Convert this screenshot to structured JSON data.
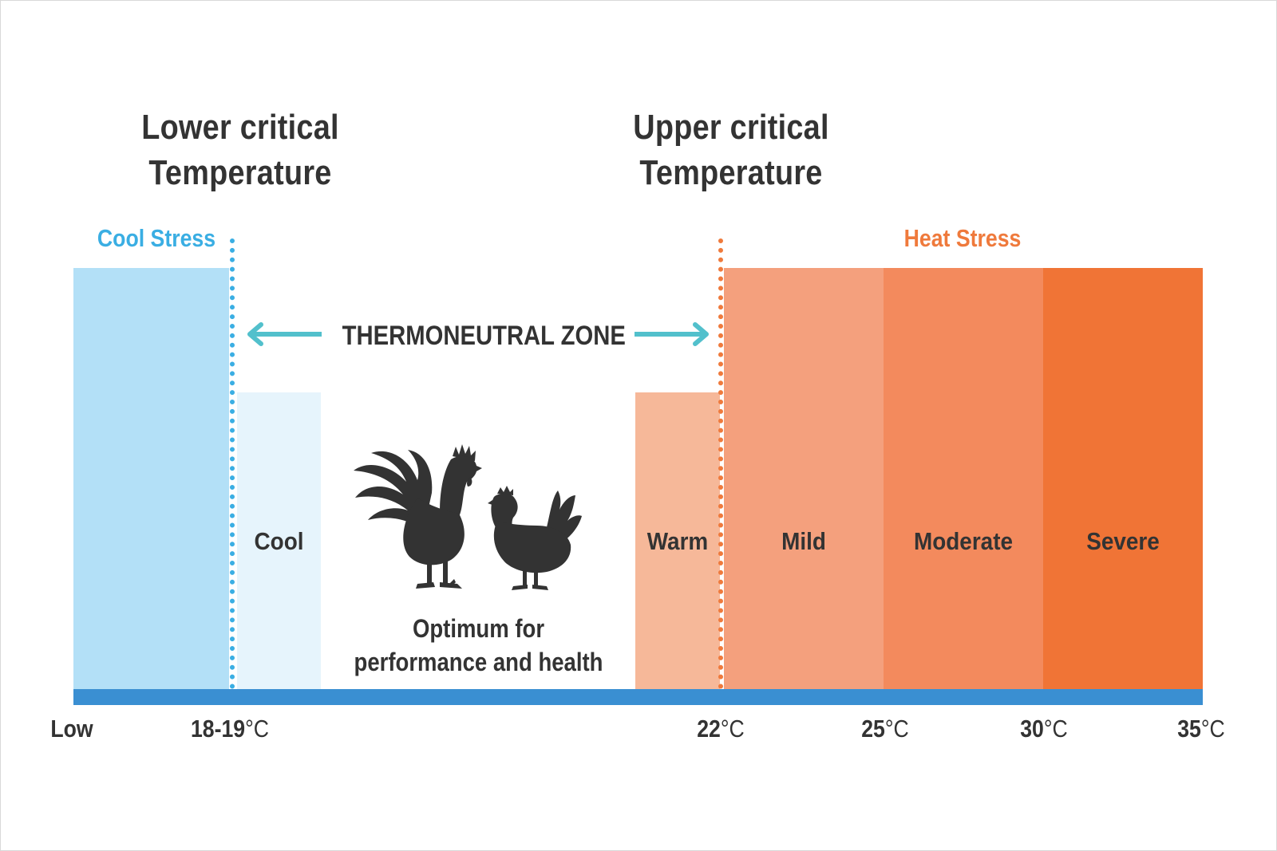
{
  "titles": {
    "lower_line1": "Lower critical",
    "lower_line2": "Temperature",
    "upper_line1": "Upper critical",
    "upper_line2": "Temperature"
  },
  "stress_labels": {
    "cool": "Cool Stress",
    "heat": "Heat Stress"
  },
  "zone_label": "THERMONEUTRAL ZONE",
  "optimum": {
    "line1": "Optimum for",
    "line2": "performance and health"
  },
  "bands": {
    "cool": "Cool",
    "warm": "Warm",
    "mild": "Mild",
    "moderate": "Moderate",
    "severe": "Severe"
  },
  "axis_ticks": {
    "low": "Low",
    "t18_19_num": "18-19",
    "t22_num": "22",
    "t25_num": "25",
    "t30_num": "30",
    "t35_num": "35",
    "unit": "°C"
  },
  "colors": {
    "cool_stress_band": "#b3e0f7",
    "cool_band": "#e6f4fc",
    "warm_band": "#f6b899",
    "mild_band": "#f4a07d",
    "moderate_band": "#f38a5d",
    "severe_band": "#f07436",
    "axis_bar": "#3a8fd2",
    "cool_accent": "#3aaee3",
    "heat_accent": "#ef7a3c",
    "arrow": "#52c0cc",
    "text": "#333333",
    "silhouette": "#333333"
  },
  "icons": {
    "rooster": "rooster-silhouette",
    "hen": "hen-silhouette",
    "left_arrow": "arrow-left-icon",
    "right_arrow": "arrow-right-icon"
  }
}
